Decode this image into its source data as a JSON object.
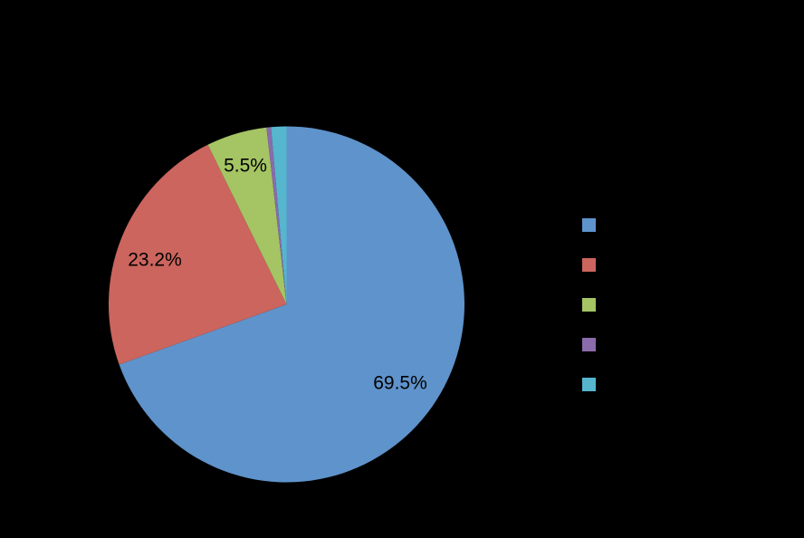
{
  "figure": {
    "background_color": "#000000"
  },
  "chart_data": {
    "type": "pie",
    "title": "",
    "values": [
      69.5,
      23.2,
      5.5,
      0.4,
      1.4
    ],
    "slice_labels": [
      "69.5%",
      "23.2%",
      "5.5%",
      "",
      ""
    ],
    "colors": [
      "#5F93CB",
      "#CB655E",
      "#A5C464",
      "#8A6BAC",
      "#55B6CE"
    ],
    "label_color": "#000000",
    "start_angle": "top",
    "direction": "clockwise",
    "legend_position": "right",
    "legend_items": [
      {
        "color": "#5F93CB",
        "label": ""
      },
      {
        "color": "#CB655E",
        "label": ""
      },
      {
        "color": "#A5C464",
        "label": ""
      },
      {
        "color": "#8A6BAC",
        "label": ""
      },
      {
        "color": "#55B6CE",
        "label": ""
      }
    ],
    "unlabeled_slice_values_estimated": true
  }
}
